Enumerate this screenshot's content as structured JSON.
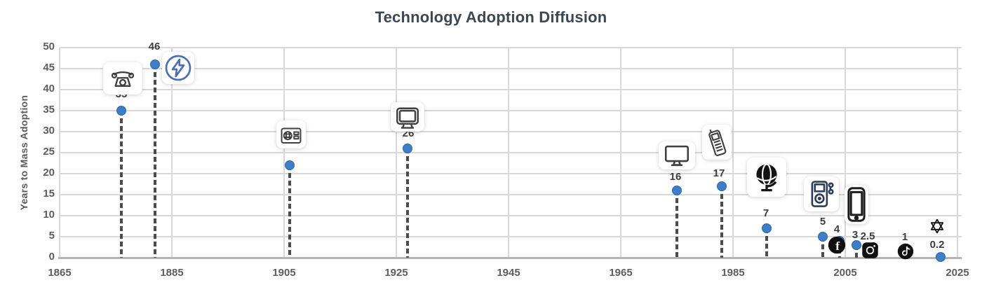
{
  "chart_data": {
    "type": "scatter",
    "title": "Technology Adoption Diffusion",
    "xlabel": "",
    "ylabel": "Years to Mass Adoption",
    "xlim": [
      1865,
      2025
    ],
    "ylim": [
      0,
      50
    ],
    "x_ticks": [
      "1865",
      "1885",
      "1905",
      "1925",
      "1945",
      "1965",
      "1985",
      "2005",
      "2025"
    ],
    "y_ticks": [
      "0",
      "5",
      "10",
      "15",
      "20",
      "25",
      "30",
      "35",
      "40",
      "45",
      "50"
    ],
    "grid": true,
    "legend": false,
    "colors": {
      "point": "#3e7ec6",
      "stem": "#4c4c4c",
      "gridline": "#d8d8d8",
      "axis": "#b3b3b3",
      "title_text": "#3d4751",
      "tick_text": "#5d5d5d",
      "value_label_text": "#3d3d3d",
      "electricity_blue": "#4a6fae"
    },
    "points": [
      {
        "tech": "telephone",
        "icon": "telephone-icon",
        "year": 1876,
        "value": 35,
        "label": "35"
      },
      {
        "tech": "electricity",
        "icon": "electricity-icon",
        "year": 1882,
        "value": 46,
        "label": "46"
      },
      {
        "tech": "radio",
        "icon": "radio-icon",
        "year": 1906,
        "value": 22,
        "label": "22"
      },
      {
        "tech": "television",
        "icon": "tv-icon",
        "year": 1927,
        "value": 26,
        "label": "26"
      },
      {
        "tech": "personal-computer",
        "icon": "computer-icon",
        "year": 1975,
        "value": 16,
        "label": "16"
      },
      {
        "tech": "mobile-phone",
        "icon": "mobile-phone-icon",
        "year": 1983,
        "value": 17,
        "label": "17"
      },
      {
        "tech": "internet",
        "icon": "globe-icon",
        "year": 1991,
        "value": 7,
        "label": "7"
      },
      {
        "tech": "ipod",
        "icon": "ipod-icon",
        "year": 2001,
        "value": 5,
        "label": "5"
      },
      {
        "tech": "facebook",
        "icon": "facebook-icon",
        "year": 2004,
        "value": 4,
        "label": "4"
      },
      {
        "tech": "smartphone",
        "icon": "smartphone-icon",
        "year": 2007,
        "value": 3,
        "label": "3"
      },
      {
        "tech": "instagram",
        "icon": "instagram-icon",
        "year": 2010,
        "value": 2.5,
        "label": "2.5"
      },
      {
        "tech": "tiktok",
        "icon": "tiktok-icon",
        "year": 2016,
        "value": 1,
        "label": "1"
      },
      {
        "tech": "chatgpt",
        "icon": "chatgpt-icon",
        "year": 2022,
        "value": 0.2,
        "label": "0.2"
      }
    ]
  }
}
